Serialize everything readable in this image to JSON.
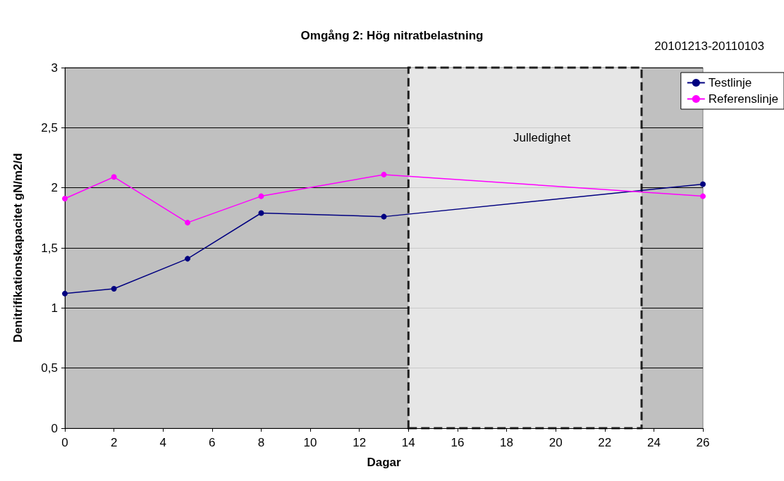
{
  "chart_data": {
    "type": "line",
    "title": "Omgång 2: Hög nitratbelastning",
    "xlabel": "Dagar",
    "ylabel": "Denitrifikationskapacitet gN/m2/d",
    "annotations": [
      "20101213-20110103"
    ],
    "x": [
      0,
      2,
      5,
      8,
      13,
      26
    ],
    "series": [
      {
        "name": "Testlinje",
        "color": "#000080",
        "values": [
          1.12,
          1.16,
          1.41,
          1.79,
          1.76,
          2.03
        ]
      },
      {
        "name": "Referenslinje",
        "color": "#ff00ff",
        "values": [
          1.91,
          2.09,
          1.71,
          1.93,
          2.11,
          1.93
        ]
      }
    ],
    "bands": [
      {
        "axis": "x",
        "from": 14,
        "to": 23.5,
        "label": "Julledighet",
        "color": "#ececec"
      }
    ],
    "xlim": [
      0,
      26
    ],
    "xticks": [
      0,
      2,
      4,
      6,
      8,
      10,
      12,
      14,
      16,
      18,
      20,
      22,
      24,
      26
    ],
    "ylim": [
      0,
      3
    ],
    "yticks": [
      0,
      {
        "value": 0.5,
        "label": "0,5"
      },
      1,
      {
        "value": 1.5,
        "label": "1,5"
      },
      2,
      {
        "value": 2.5,
        "label": "2,5"
      },
      3
    ],
    "grid": "y",
    "legend": "top right",
    "marker": "circle",
    "line_style": "solid"
  }
}
